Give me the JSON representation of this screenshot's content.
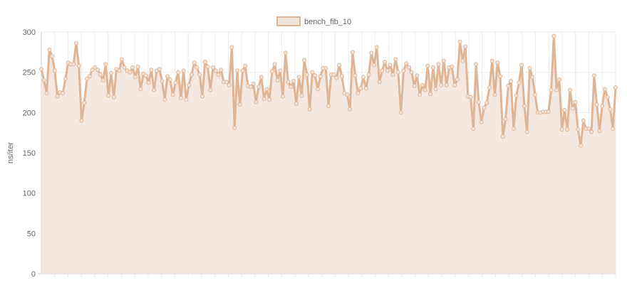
{
  "chart_data": {
    "type": "line",
    "title": "",
    "xlabel": "",
    "ylabel": "ns/iter",
    "ylim": [
      0,
      300
    ],
    "yticks": [
      "0",
      "50",
      "100",
      "150",
      "200",
      "250",
      "300"
    ],
    "grid": true,
    "legend_position": "top-center",
    "series": [
      {
        "name": "bench_fib_10",
        "color": "#e0b595",
        "fill": "#f3e4da",
        "values": [
          254,
          240,
          224,
          278,
          270,
          252,
          220,
          225,
          224,
          242,
          262,
          260,
          260,
          286,
          258,
          190,
          212,
          242,
          245,
          253,
          256,
          253,
          247,
          240,
          260,
          221,
          249,
          219,
          254,
          252,
          266,
          256,
          252,
          250,
          256,
          244,
          257,
          229,
          248,
          246,
          237,
          253,
          228,
          252,
          254,
          239,
          216,
          245,
          241,
          222,
          237,
          250,
          218,
          252,
          216,
          234,
          247,
          262,
          256,
          247,
          220,
          263,
          257,
          228,
          256,
          252,
          247,
          253,
          238,
          238,
          234,
          281,
          181,
          252,
          210,
          252,
          258,
          233,
          232,
          236,
          213,
          232,
          244,
          217,
          229,
          216,
          251,
          260,
          240,
          252,
          220,
          274,
          238,
          232,
          239,
          211,
          244,
          221,
          265,
          247,
          204,
          250,
          246,
          229,
          245,
          255,
          255,
          208,
          247,
          247,
          243,
          259,
          245,
          224,
          222,
          204,
          275,
          246,
          224,
          230,
          244,
          230,
          247,
          274,
          259,
          281,
          238,
          252,
          263,
          252,
          259,
          247,
          266,
          250,
          200,
          252,
          261,
          256,
          250,
          233,
          246,
          222,
          234,
          228,
          258,
          223,
          256,
          229,
          260,
          234,
          264,
          234,
          256,
          257,
          234,
          241,
          288,
          264,
          282,
          220,
          219,
          180,
          260,
          213,
          188,
          206,
          212,
          231,
          264,
          222,
          262,
          245,
          170,
          192,
          233,
          239,
          180,
          221,
          237,
          259,
          208,
          176,
          255,
          244,
          222,
          200,
          200,
          201,
          201,
          201,
          228,
          295,
          228,
          241,
          179,
          203,
          179,
          228,
          205,
          213,
          179,
          159,
          190,
          180,
          180,
          176,
          246,
          210,
          177,
          208,
          229,
          219,
          204,
          180,
          231
        ]
      }
    ]
  }
}
